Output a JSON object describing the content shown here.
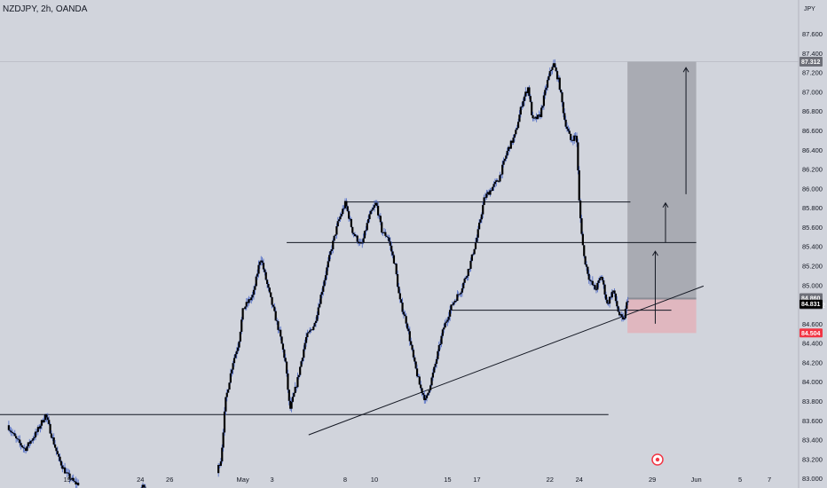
{
  "header": {
    "symbol": "NZDJPY, 2h, OANDA"
  },
  "colors": {
    "background": "#d1d4dc",
    "candle": "#000000",
    "wick": "#4a67c4",
    "profit_zone": "#a9abb3",
    "loss_zone": "#e0b7bf",
    "entry_tag": "#6e7079",
    "close_tag": "#000000",
    "stop_tag": "#f23645"
  },
  "chart_data": {
    "type": "candlestick",
    "unit": "JPY",
    "ylim": [
      83.0,
      87.7
    ],
    "y_ticks": [
      "83.000",
      "83.200",
      "83.400",
      "83.600",
      "83.800",
      "84.000",
      "84.200",
      "84.400",
      "84.600",
      "85.000",
      "85.200",
      "85.400",
      "85.600",
      "85.800",
      "86.000",
      "86.200",
      "86.400",
      "86.600",
      "86.800",
      "87.000",
      "87.200",
      "87.400",
      "87.600"
    ],
    "x_ticks": [
      {
        "label": "19",
        "day": 19
      },
      {
        "label": "24",
        "day": 24
      },
      {
        "label": "26",
        "day": 26
      },
      {
        "label": "May",
        "day": 31
      },
      {
        "label": "3",
        "day": 33
      },
      {
        "label": "8",
        "day": 38
      },
      {
        "label": "10",
        "day": 40
      },
      {
        "label": "15",
        "day": 45
      },
      {
        "label": "17",
        "day": 47
      },
      {
        "label": "22",
        "day": 52
      },
      {
        "label": "24",
        "day": 54
      },
      {
        "label": "29",
        "day": 59
      },
      {
        "label": "Jun",
        "day": 62
      },
      {
        "label": "5",
        "day": 65
      },
      {
        "label": "7",
        "day": 67
      }
    ],
    "price_path": [
      [
        15.0,
        83.55
      ],
      [
        15.6,
        83.4
      ],
      [
        16.2,
        83.3
      ],
      [
        17.0,
        83.48
      ],
      [
        17.6,
        83.66
      ],
      [
        18.0,
        83.45
      ],
      [
        18.5,
        83.2
      ],
      [
        19.0,
        83.05
      ],
      [
        19.6,
        82.95
      ],
      [
        22.0,
        82.9
      ],
      [
        24.0,
        82.9
      ],
      [
        26.0,
        82.95
      ],
      [
        29.0,
        82.95
      ],
      [
        29.6,
        83.2
      ],
      [
        29.9,
        83.8
      ],
      [
        30.4,
        84.2
      ],
      [
        30.8,
        84.4
      ],
      [
        31.1,
        84.75
      ],
      [
        31.8,
        84.9
      ],
      [
        32.3,
        85.3
      ],
      [
        32.6,
        85.1
      ],
      [
        33.0,
        84.85
      ],
      [
        33.6,
        84.5
      ],
      [
        34.0,
        84.2
      ],
      [
        34.3,
        83.7
      ],
      [
        34.8,
        84.0
      ],
      [
        35.4,
        84.45
      ],
      [
        36.0,
        84.6
      ],
      [
        36.5,
        84.95
      ],
      [
        37.1,
        85.35
      ],
      [
        37.6,
        85.65
      ],
      [
        38.1,
        85.85
      ],
      [
        38.6,
        85.55
      ],
      [
        39.2,
        85.4
      ],
      [
        39.7,
        85.7
      ],
      [
        40.2,
        85.85
      ],
      [
        40.6,
        85.55
      ],
      [
        41.0,
        85.5
      ],
      [
        41.5,
        85.2
      ],
      [
        41.8,
        84.85
      ],
      [
        42.3,
        84.6
      ],
      [
        42.8,
        84.2
      ],
      [
        43.2,
        83.95
      ],
      [
        43.6,
        83.8
      ],
      [
        44.2,
        84.15
      ],
      [
        44.8,
        84.55
      ],
      [
        45.4,
        84.8
      ],
      [
        46.0,
        84.95
      ],
      [
        46.6,
        85.2
      ],
      [
        47.1,
        85.5
      ],
      [
        47.6,
        85.9
      ],
      [
        48.1,
        86.0
      ],
      [
        48.6,
        86.1
      ],
      [
        49.2,
        86.4
      ],
      [
        49.7,
        86.55
      ],
      [
        50.2,
        86.9
      ],
      [
        50.6,
        87.05
      ],
      [
        50.9,
        86.7
      ],
      [
        51.4,
        86.75
      ],
      [
        51.9,
        87.1
      ],
      [
        52.3,
        87.3
      ],
      [
        52.7,
        87.1
      ],
      [
        53.1,
        86.7
      ],
      [
        53.5,
        86.5
      ],
      [
        53.9,
        86.55
      ],
      [
        54.1,
        85.8
      ],
      [
        54.4,
        85.3
      ],
      [
        54.8,
        85.05
      ],
      [
        55.2,
        84.95
      ],
      [
        55.6,
        85.1
      ],
      [
        56.0,
        84.8
      ],
      [
        56.4,
        84.95
      ],
      [
        56.8,
        84.7
      ],
      [
        57.1,
        84.62
      ],
      [
        57.4,
        84.86
      ]
    ],
    "levels": [
      {
        "name": "resistance-1",
        "price": 85.86,
        "from": 38.0,
        "to": 57.5
      },
      {
        "name": "resistance-2",
        "price": 85.44,
        "from": 34.0,
        "to": 62.0
      },
      {
        "name": "support-1",
        "price": 84.74,
        "from": 45.1,
        "to": 60.3
      },
      {
        "name": "support-2",
        "price": 83.66,
        "from": 14.4,
        "to": 56.0
      }
    ],
    "trendline": {
      "from": [
        35.5,
        83.45
      ],
      "to": [
        62.5,
        84.99
      ]
    },
    "position": {
      "from": 57.3,
      "to": 62.0,
      "entry": 84.86,
      "target": 87.312,
      "stop": 84.504,
      "entry_label": "84.860",
      "target_label": "87.312",
      "stop_label": "84.504",
      "countdown_label": "01:31:12"
    },
    "last_price": 84.831,
    "last_price_label": "84.831",
    "arrows": [
      {
        "x": 59.2,
        "from": 84.6,
        "to": 85.35
      },
      {
        "x": 59.9,
        "from": 85.44,
        "to": 85.85
      },
      {
        "x": 61.3,
        "from": 85.94,
        "to": 87.25
      }
    ]
  }
}
